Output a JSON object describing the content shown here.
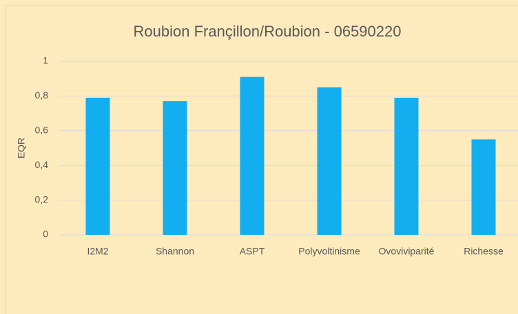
{
  "chart_data": {
    "type": "bar",
    "title": "Roubion Françillon/Roubion - 06590220",
    "y_label": "EQR",
    "categories": [
      "I2M2",
      "Shannon",
      "ASPT",
      "Polyvoltinisme",
      "Ovoviviparité",
      "Richesse"
    ],
    "values": [
      0.79,
      0.77,
      0.91,
      0.85,
      0.79,
      0.55
    ],
    "color": "#12aef0",
    "ylim": [
      0,
      1
    ],
    "yticks": [
      0,
      {
        "value": 0.2,
        "label": "0,2"
      },
      {
        "value": 0.4,
        "label": "0,4"
      },
      {
        "value": 0.6,
        "label": "0,6"
      },
      {
        "value": 0.8,
        "label": "0,8"
      },
      1
    ],
    "grid": true
  }
}
